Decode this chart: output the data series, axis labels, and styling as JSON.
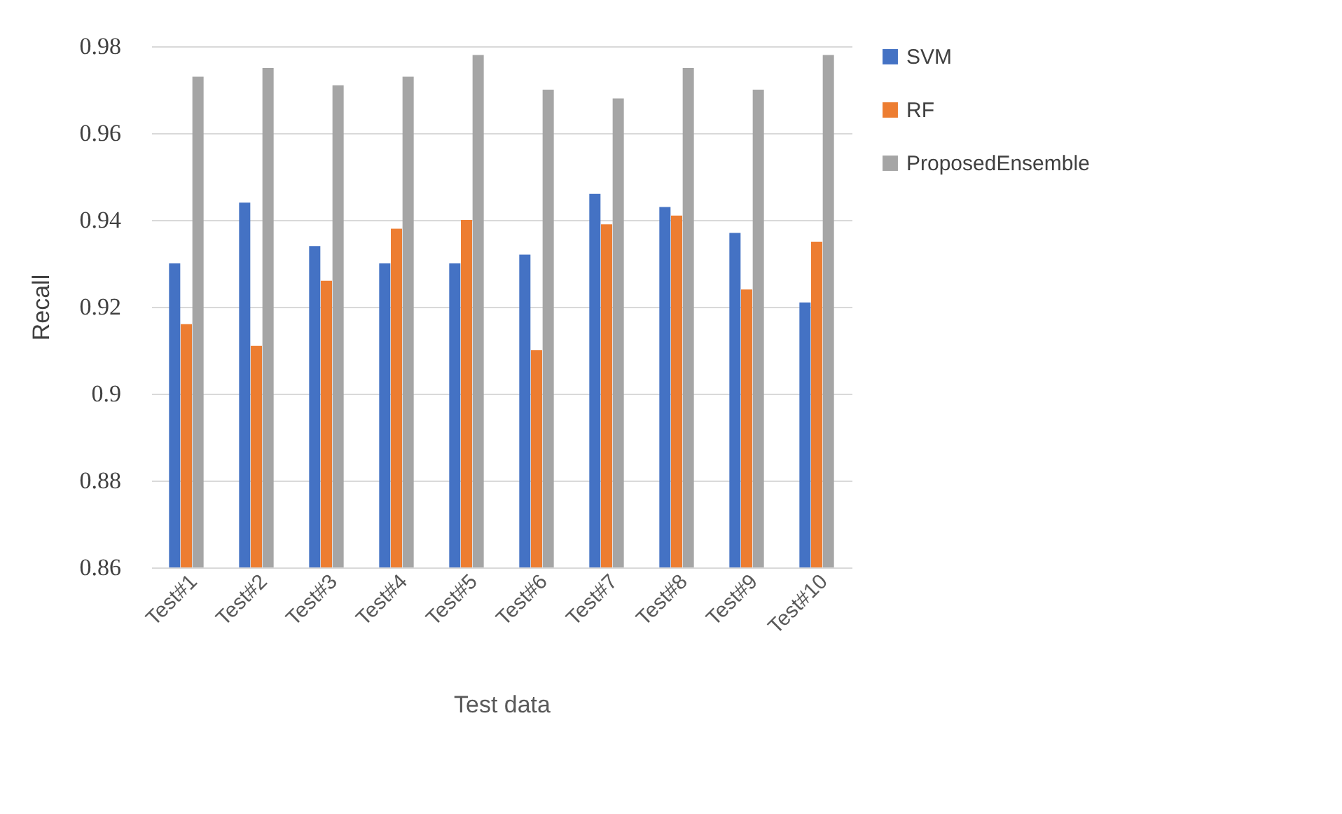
{
  "chart_data": {
    "type": "bar",
    "xlabel": "Test data",
    "ylabel": "Recall",
    "categories": [
      "Test#1",
      "Test#2",
      "Test#3",
      "Test#4",
      "Test#5",
      "Test#6",
      "Test#7",
      "Test#8",
      "Test#9",
      "Test#10"
    ],
    "series": [
      {
        "name": "SVM",
        "color": "#4472c4",
        "values": [
          0.93,
          0.944,
          0.934,
          0.93,
          0.93,
          0.932,
          0.946,
          0.943,
          0.937,
          0.921
        ]
      },
      {
        "name": "RF",
        "color": "#ed7d31",
        "values": [
          0.916,
          0.911,
          0.926,
          0.938,
          0.94,
          0.91,
          0.939,
          0.941,
          0.924,
          0.935
        ]
      },
      {
        "name": "ProposedEnsemble",
        "color": "#a5a5a5",
        "values": [
          0.973,
          0.975,
          0.971,
          0.973,
          0.978,
          0.97,
          0.968,
          0.975,
          0.97,
          0.978
        ]
      }
    ],
    "ylim": [
      0.86,
      0.98
    ],
    "yticks": [
      0.86,
      0.88,
      {
        "value": 0.9,
        "label": "0.9"
      },
      0.92,
      0.94,
      0.96,
      0.98
    ],
    "grid": "y",
    "legend": "right"
  }
}
